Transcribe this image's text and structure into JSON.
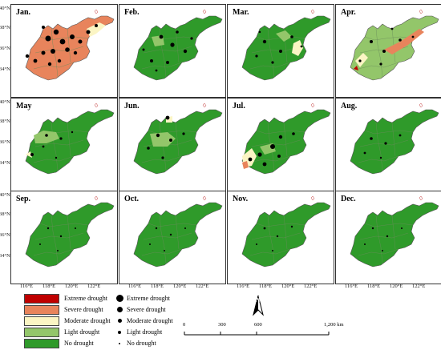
{
  "panels": [
    {
      "label": "Jan.",
      "dominant": "severe"
    },
    {
      "label": "Feb.",
      "dominant": "none"
    },
    {
      "label": "Mar.",
      "dominant": "none"
    },
    {
      "label": "Apr.",
      "dominant": "light"
    },
    {
      "label": "May",
      "dominant": "none"
    },
    {
      "label": "Jun.",
      "dominant": "none"
    },
    {
      "label": "Jul.",
      "dominant": "none"
    },
    {
      "label": "Aug.",
      "dominant": "none"
    },
    {
      "label": "Sep.",
      "dominant": "none"
    },
    {
      "label": "Oct.",
      "dominant": "none"
    },
    {
      "label": "Nov.",
      "dominant": "none"
    },
    {
      "label": "Dec.",
      "dominant": "none"
    }
  ],
  "lat_ticks": [
    "40°N",
    "38°N",
    "36°N",
    "34°N"
  ],
  "lon_ticks": [
    "116°E",
    "118°E",
    "120°E",
    "122°E"
  ],
  "legend": {
    "fill": [
      {
        "label": "Extreme drought",
        "color": "#c00000"
      },
      {
        "label": "Severe drought",
        "color": "#e8845c"
      },
      {
        "label": "Moderate drought",
        "color": "#fbf5c4"
      },
      {
        "label": "Light drought",
        "color": "#93c66a"
      },
      {
        "label": "No drought",
        "color": "#2f9a2a"
      }
    ],
    "points": [
      {
        "label": "Extreme drought",
        "size": 8
      },
      {
        "label": "Severe drought",
        "size": 6.5
      },
      {
        "label": "Moderate drought",
        "size": 5
      },
      {
        "label": "Light drought",
        "size": 3.5
      },
      {
        "label": "No drought",
        "size": 2
      }
    ]
  },
  "north_label": "N",
  "scale": {
    "ticks": [
      "0",
      "300",
      "600",
      "1,200 km"
    ]
  },
  "colors": {
    "extreme": "#c00000",
    "severe": "#e8845c",
    "moderate": "#fbf5c4",
    "light": "#93c66a",
    "none": "#2f9a2a"
  }
}
